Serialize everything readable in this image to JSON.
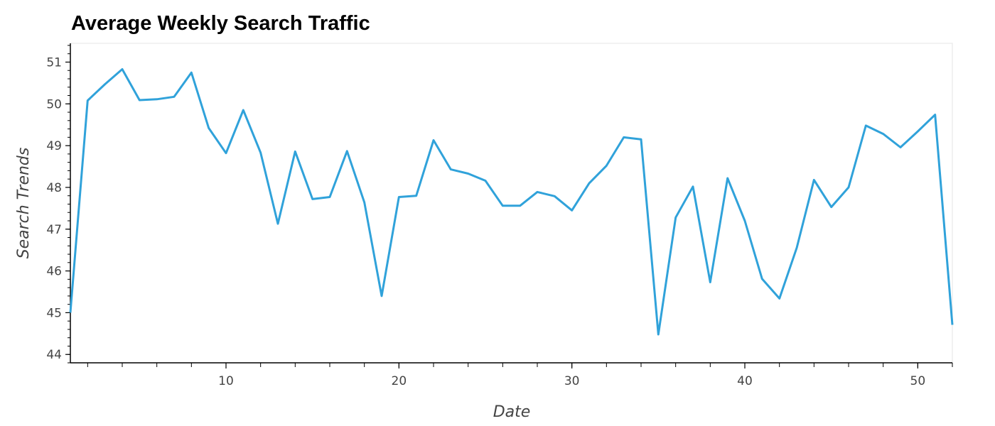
{
  "chart_data": {
    "type": "line",
    "title": "Average Weekly Search Traffic",
    "xlabel": "Date",
    "ylabel": "Search Trends",
    "xlim": [
      1,
      52
    ],
    "ylim": [
      43.8,
      51.45
    ],
    "x_ticks_labeled": [
      10,
      20,
      30,
      40,
      50
    ],
    "y_ticks": [
      44,
      45,
      46,
      47,
      48,
      49,
      50,
      51
    ],
    "grid": false,
    "line_color": "#30a2da",
    "series": [
      {
        "x": [
          1,
          2,
          3,
          4,
          5,
          6,
          7,
          8,
          9,
          10,
          11,
          12,
          13,
          14,
          15,
          16,
          17,
          18,
          19,
          20,
          21,
          22,
          23,
          24,
          25,
          26,
          27,
          28,
          29,
          30,
          31,
          32,
          33,
          34,
          35,
          36,
          37,
          38,
          39,
          40,
          41,
          42,
          43,
          44,
          45,
          46,
          47,
          48,
          49,
          50,
          51,
          52
        ],
        "values": [
          45.0,
          50.08,
          50.47,
          50.83,
          50.09,
          50.11,
          50.17,
          50.75,
          49.42,
          48.82,
          49.85,
          48.83,
          47.13,
          48.86,
          47.72,
          47.77,
          48.87,
          47.64,
          45.4,
          47.77,
          47.8,
          49.13,
          48.43,
          48.33,
          48.16,
          47.56,
          47.56,
          47.89,
          47.79,
          47.45,
          48.1,
          48.52,
          49.2,
          49.15,
          44.48,
          47.28,
          48.02,
          45.73,
          48.22,
          47.2,
          45.81,
          45.34,
          46.55,
          48.18,
          47.53,
          48.0,
          49.48,
          49.28,
          48.96,
          49.34,
          49.74,
          44.71
        ]
      }
    ]
  }
}
